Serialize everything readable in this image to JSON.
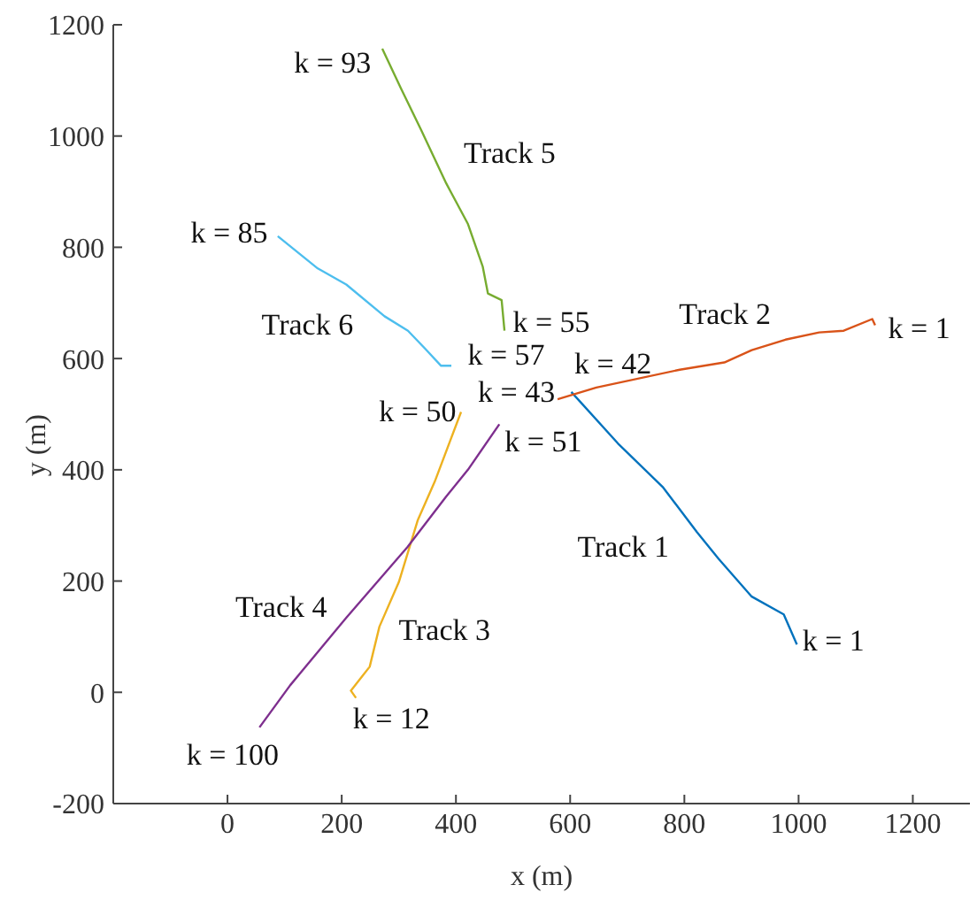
{
  "chart_data": {
    "type": "line",
    "xlabel": "x (m)",
    "ylabel": "y (m)",
    "xlim": [
      -200,
      1300
    ],
    "ylim": [
      -200,
      1200
    ],
    "xticks": [
      0,
      200,
      400,
      600,
      800,
      1000,
      1200
    ],
    "yticks": [
      -200,
      0,
      200,
      400,
      600,
      800,
      1000,
      1200
    ],
    "grid": false,
    "marker": "none",
    "line_style": "solid",
    "series": [
      {
        "color": "#0072bd",
        "x": [
          602,
          684,
          763,
          822,
          860,
          918,
          974,
          997
        ],
        "values": [
          540,
          447,
          368,
          288,
          240,
          172,
          140,
          86
        ]
      },
      {
        "color": "#d95319",
        "x": [
          1134,
          1129,
          1079,
          1036,
          977,
          918,
          870,
          792,
          646,
          578
        ],
        "values": [
          660,
          671,
          650,
          647,
          634,
          615,
          593,
          580,
          548,
          527
        ]
      },
      {
        "color": "#edb120",
        "x": [
          225,
          216,
          249,
          266,
          300,
          333,
          363,
          409
        ],
        "values": [
          -10,
          3,
          46,
          118,
          198,
          309,
          379,
          504
        ]
      },
      {
        "color": "#7e2f8e",
        "x": [
          476,
          421,
          383,
          315,
          208,
          110,
          56
        ],
        "values": [
          482,
          400,
          352,
          261,
          134,
          13,
          -63
        ]
      },
      {
        "color": "#77ac30",
        "x": [
          485,
          480,
          456,
          447,
          421,
          383,
          339,
          304,
          271
        ],
        "values": [
          650,
          705,
          717,
          765,
          842,
          915,
          1011,
          1085,
          1157
        ]
      },
      {
        "color": "#4dbeee",
        "x": [
          392,
          374,
          345,
          316,
          275,
          208,
          158,
          88
        ],
        "values": [
          587,
          587,
          619,
          650,
          676,
          733,
          762,
          820
        ]
      }
    ],
    "annotations": [
      "k = 93",
      "Track 5",
      "k = 85",
      "Track 6",
      "k = 55",
      "k = 57",
      "k = 43",
      "k = 42",
      "k = 50",
      "k = 51",
      "Track 2",
      "k = 1",
      "Track 1",
      "k = 1",
      "Track 4",
      "Track 3",
      "k = 12",
      "k = 100"
    ]
  }
}
